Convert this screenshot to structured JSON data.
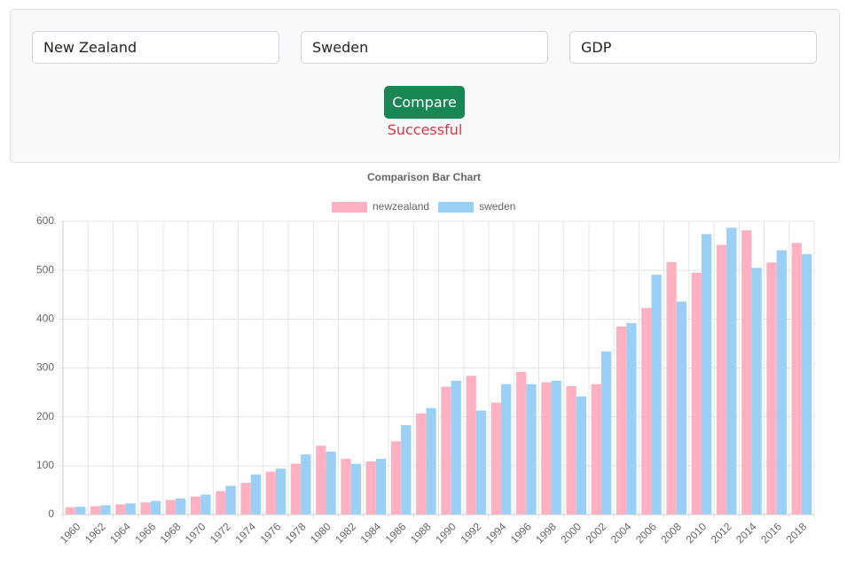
{
  "form": {
    "country1": "New Zealand",
    "country2": "Sweden",
    "indicator": "GDP",
    "button": "Compare",
    "status": "Successful"
  },
  "chart_data": {
    "type": "bar",
    "title": "Comparison Bar Chart",
    "categories": [
      "1960",
      "1962",
      "1964",
      "1966",
      "1968",
      "1970",
      "1972",
      "1974",
      "1976",
      "1978",
      "1980",
      "1982",
      "1984",
      "1986",
      "1988",
      "1990",
      "1992",
      "1994",
      "1996",
      "1998",
      "2000",
      "2002",
      "2004",
      "2006",
      "2008",
      "2010",
      "2012",
      "2014",
      "2016",
      "2018"
    ],
    "series": [
      {
        "name": "newzealand",
        "color": "#ffb1c1",
        "values": [
          15,
          17,
          21,
          25,
          30,
          37,
          48,
          65,
          88,
          104,
          141,
          114,
          109,
          150,
          207,
          262,
          284,
          229,
          292,
          271,
          263,
          267,
          385,
          423,
          517,
          495,
          552,
          582,
          516,
          556
        ]
      },
      {
        "name": "sweden",
        "color": "#9ad0f5",
        "values": [
          16,
          19,
          23,
          28,
          33,
          41,
          59,
          82,
          94,
          123,
          129,
          104,
          114,
          183,
          218,
          274,
          213,
          267,
          267,
          274,
          242,
          334,
          392,
          491,
          436,
          574,
          587,
          505,
          541,
          533
        ]
      }
    ],
    "ylim": [
      0,
      600
    ],
    "yticks": [
      0,
      100,
      200,
      300,
      400,
      500,
      600
    ],
    "grid": true,
    "legend": "top"
  }
}
